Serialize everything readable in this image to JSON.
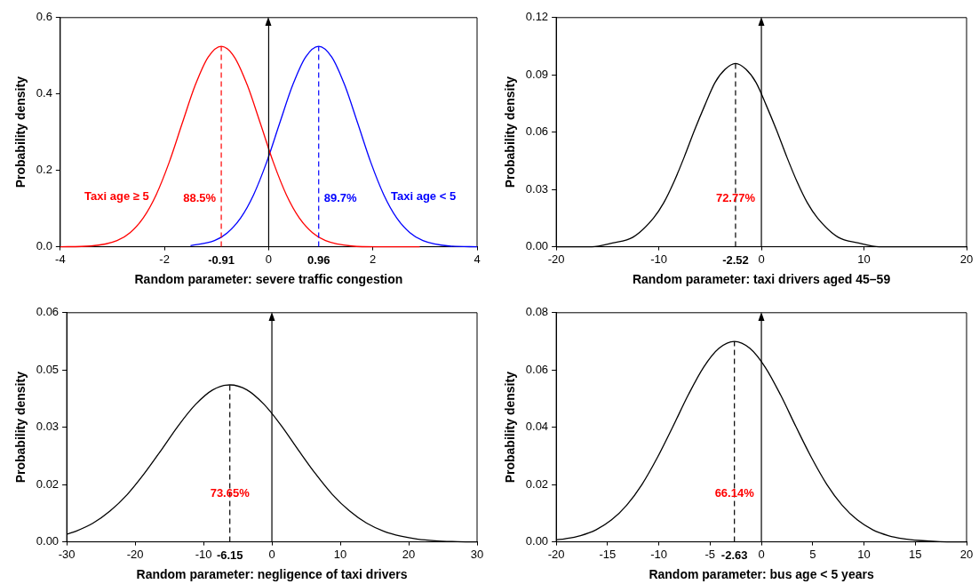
{
  "chart_data": [
    {
      "type": "line",
      "xlabel": "Random parameter: severe traffic congestion",
      "ylabel": "Probability density",
      "xlim": [
        -4,
        4
      ],
      "xticks": [
        -4,
        -2,
        0,
        2,
        4
      ],
      "ylim": [
        0,
        0.6
      ],
      "yticks": [
        {
          "value": 0,
          "label": "0.0"
        },
        {
          "value": 0.2,
          "label": "0.2"
        },
        {
          "value": 0.4,
          "label": "0.4"
        },
        {
          "value": 0.6,
          "label": "0.6"
        }
      ],
      "legend": false,
      "marker": "none",
      "line_style": "solid",
      "series": [
        {
          "name": "Taxi age ≥ 5",
          "color": "#ff0000",
          "x": [
            -4,
            -3.41,
            -2.91,
            -2.66,
            -2.41,
            -2.16,
            -1.91,
            -1.66,
            -1.41,
            -1.16,
            -0.91,
            -0.66,
            -0.41,
            -0.16,
            0.09,
            0.34,
            0.59,
            0.84,
            1.09,
            1.59,
            2.09,
            2.9
          ],
          "values": [
            0,
            0.002,
            0.016,
            0.037,
            0.075,
            0.136,
            0.221,
            0.323,
            0.423,
            0.497,
            0.525,
            0.497,
            0.423,
            0.323,
            0.221,
            0.136,
            0.075,
            0.037,
            0.016,
            0.002,
            0,
            0
          ]
        },
        {
          "name": "Taxi age < 5",
          "color": "#0000ff",
          "x": [
            -1.5,
            -1.04,
            -0.79,
            -0.54,
            -0.29,
            -0.04,
            0.21,
            0.46,
            0.71,
            0.96,
            1.21,
            1.46,
            1.71,
            1.96,
            2.21,
            2.46,
            2.71,
            2.96,
            3.46,
            4
          ],
          "values": [
            0.003,
            0.016,
            0.037,
            0.075,
            0.136,
            0.221,
            0.323,
            0.423,
            0.497,
            0.525,
            0.497,
            0.423,
            0.323,
            0.221,
            0.136,
            0.075,
            0.037,
            0.016,
            0.002,
            0
          ]
        }
      ],
      "ref_lines": [
        {
          "axis": "x",
          "value": 0,
          "line_style": "solid",
          "color": "#000000"
        },
        {
          "axis": "x",
          "value": -0.91,
          "label": "-0.91",
          "line_style": "dashed",
          "color": "#ff0000"
        },
        {
          "axis": "x",
          "value": 0.96,
          "label": "0.96",
          "line_style": "dashed",
          "color": "#0000ff"
        }
      ],
      "annotations": [
        "88.5%",
        "89.7%"
      ]
    },
    {
      "type": "line",
      "xlabel": "Random parameter: taxi drivers aged 45–59",
      "ylabel": "Probability density",
      "xlim": [
        -20,
        20
      ],
      "xticks": [
        -20,
        -10,
        0,
        10,
        20
      ],
      "ylim": [
        0,
        0.12
      ],
      "yticks": [
        {
          "value": 0,
          "label": "0.00"
        },
        {
          "value": 0.03,
          "label": "0.03"
        },
        {
          "value": 0.06,
          "label": "0.06"
        },
        {
          "value": 0.09,
          "label": "0.09"
        },
        {
          "value": 0.12,
          "label": "0.12"
        }
      ],
      "legend": false,
      "marker": "none",
      "line_style": "solid",
      "series": [
        {
          "color": "#000000",
          "x": [
            -20,
            -16.52,
            -14.52,
            -12.52,
            -10.52,
            -9.52,
            -8.52,
            -7.52,
            -6.52,
            -5.52,
            -4.52,
            -3.52,
            -2.52,
            -1.52,
            -0.52,
            0.48,
            1.48,
            2.48,
            3.48,
            4.48,
            5.48,
            7.48,
            9.48,
            11.48,
            14,
            20
          ],
          "values": [
            0,
            0,
            0.002,
            0.005,
            0.015,
            0.023,
            0.034,
            0.047,
            0.061,
            0.074,
            0.086,
            0.093,
            0.096,
            0.093,
            0.086,
            0.074,
            0.061,
            0.047,
            0.034,
            0.023,
            0.015,
            0.005,
            0.002,
            0,
            0,
            0
          ]
        }
      ],
      "ref_lines": [
        {
          "axis": "x",
          "value": 0,
          "line_style": "solid",
          "color": "#000000"
        },
        {
          "axis": "x",
          "value": -2.52,
          "label": "-2.52",
          "line_style": "dashed",
          "color": "#000000"
        }
      ],
      "annotations": [
        "72.77%"
      ]
    },
    {
      "type": "line",
      "xlabel": "Random parameter: negligence of taxi drivers",
      "ylabel": "Probability density",
      "xlim": [
        -30,
        30
      ],
      "xticks": [
        -30,
        -20,
        -10,
        0,
        10,
        20,
        30
      ],
      "ylim": [
        0,
        0.06
      ],
      "yticks": [
        {
          "value": 0,
          "label": "0.00"
        },
        {
          "value": 0.015,
          "label": "0.02"
        },
        {
          "value": 0.03,
          "label": "0.03"
        },
        {
          "value": 0.045,
          "label": "0.05"
        },
        {
          "value": 0.06,
          "label": "0.06"
        }
      ],
      "legend": false,
      "marker": "none",
      "line_style": "solid",
      "series": [
        {
          "color": "#000000",
          "x": [
            -30,
            -28.65,
            -26.15,
            -23.65,
            -21.15,
            -18.65,
            -16.15,
            -13.65,
            -11.15,
            -8.65,
            -6.15,
            -3.65,
            -1.15,
            1.35,
            3.85,
            6.35,
            8.85,
            11.35,
            13.85,
            16.35,
            18.85,
            21.35,
            23.85,
            26.35,
            28.85,
            30
          ],
          "values": [
            0.002,
            0.0028,
            0.0049,
            0.0081,
            0.0124,
            0.0179,
            0.0241,
            0.0305,
            0.036,
            0.0398,
            0.0411,
            0.0398,
            0.036,
            0.0305,
            0.0241,
            0.0179,
            0.0124,
            0.0081,
            0.0049,
            0.0028,
            0.0015,
            0.0007,
            0.0003,
            0.0001,
            0,
            0
          ]
        }
      ],
      "ref_lines": [
        {
          "axis": "x",
          "value": 0,
          "line_style": "solid",
          "color": "#000000"
        },
        {
          "axis": "x",
          "value": -6.15,
          "label": "-6.15",
          "line_style": "dashed",
          "color": "#000000"
        }
      ],
      "annotations": [
        "73.65%"
      ]
    },
    {
      "type": "line",
      "xlabel": "Random parameter: bus age < 5 years",
      "ylabel": "Probability density",
      "xlim": [
        -20,
        20
      ],
      "xticks": [
        -20,
        -15,
        -10,
        -5,
        0,
        5,
        10,
        15,
        20
      ],
      "ylim": [
        0,
        0.08
      ],
      "yticks": [
        {
          "value": 0,
          "label": "0.00"
        },
        {
          "value": 0.02,
          "label": "0.02"
        },
        {
          "value": 0.04,
          "label": "0.04"
        },
        {
          "value": 0.06,
          "label": "0.06"
        },
        {
          "value": 0.08,
          "label": "0.08"
        }
      ],
      "legend": false,
      "marker": "none",
      "line_style": "solid",
      "series": [
        {
          "color": "#000000",
          "x": [
            -20,
            -19.13,
            -17.63,
            -16.13,
            -14.63,
            -13.13,
            -11.63,
            -10.13,
            -8.63,
            -7.13,
            -5.63,
            -4.13,
            -2.63,
            -1.13,
            0.37,
            1.87,
            3.37,
            4.87,
            6.37,
            7.87,
            9.37,
            10.87,
            12.37,
            13.87,
            15.37,
            17.37,
            20
          ],
          "values": [
            0.0007,
            0.0011,
            0.0022,
            0.0042,
            0.0076,
            0.0128,
            0.0201,
            0.0295,
            0.0402,
            0.0513,
            0.061,
            0.0676,
            0.07,
            0.0676,
            0.061,
            0.0513,
            0.0402,
            0.0295,
            0.0201,
            0.0128,
            0.0076,
            0.0042,
            0.0022,
            0.0011,
            0.0005,
            0.0001,
            0
          ]
        }
      ],
      "ref_lines": [
        {
          "axis": "x",
          "value": 0,
          "line_style": "solid",
          "color": "#000000"
        },
        {
          "axis": "x",
          "value": -2.63,
          "label": "-2.63",
          "line_style": "dashed",
          "color": "#000000"
        }
      ],
      "annotations": [
        "66.14%"
      ]
    }
  ]
}
